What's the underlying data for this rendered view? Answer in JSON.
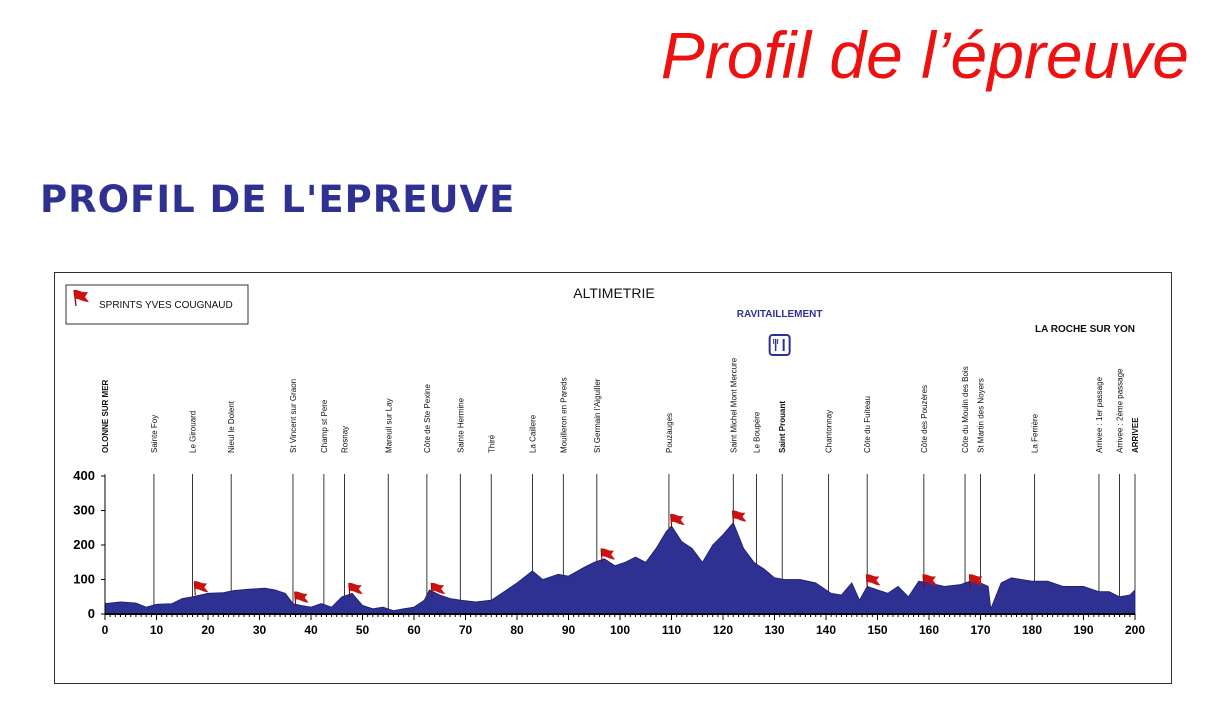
{
  "slide_title": "Profil de l’épreuve",
  "section_heading": "PROFIL DE L'EPREUVE",
  "chart_data": {
    "type": "area",
    "title": "ALTIMETRIE",
    "legend": {
      "label": "SPRINTS YVES COUGNAUD",
      "icon": "red-flag-icon",
      "placement": "top-left"
    },
    "annotations": {
      "feed_zone": {
        "label": "RAVITAILLEMENT",
        "icon": "cutlery-icon",
        "km": 131
      },
      "finish_city": "LA ROCHE SUR YON"
    },
    "xlim": [
      0,
      200
    ],
    "ylim": [
      0,
      400
    ],
    "x_ticks": [
      0,
      10,
      20,
      30,
      40,
      50,
      60,
      70,
      80,
      90,
      100,
      110,
      120,
      130,
      140,
      150,
      160,
      170,
      180,
      190,
      200
    ],
    "y_ticks": [
      0,
      100,
      200,
      300,
      400
    ],
    "grid": false,
    "colors": {
      "fill": "#2e3192",
      "flag": "#cc1111",
      "text": "#111111",
      "feed": "#2e3192"
    },
    "profile": {
      "x": [
        0,
        3,
        6,
        8,
        10,
        13,
        15,
        17,
        20,
        23,
        25,
        28,
        31,
        33,
        35,
        36.5,
        38,
        40,
        42,
        44,
        46,
        48,
        50,
        52,
        54,
        56,
        58,
        60,
        62,
        63,
        65,
        67,
        69,
        72,
        75,
        78,
        80,
        83,
        85,
        88,
        90,
        93,
        95,
        97,
        99,
        101,
        103,
        105,
        107,
        109,
        110,
        112,
        114,
        116,
        118,
        120,
        122,
        124,
        126,
        128,
        130,
        132,
        135,
        138,
        141,
        143,
        145,
        146.5,
        148,
        150,
        152,
        154,
        156,
        158,
        160,
        163,
        166,
        168,
        170,
        171.5,
        172,
        174,
        176,
        178,
        180,
        183,
        186,
        190,
        193,
        195,
        197,
        199,
        200
      ],
      "y": [
        30,
        35,
        32,
        20,
        28,
        30,
        45,
        50,
        60,
        62,
        68,
        72,
        75,
        70,
        60,
        30,
        25,
        20,
        30,
        20,
        50,
        60,
        25,
        15,
        20,
        10,
        15,
        20,
        40,
        70,
        55,
        45,
        40,
        35,
        40,
        70,
        90,
        125,
        100,
        115,
        110,
        135,
        150,
        160,
        140,
        150,
        165,
        150,
        190,
        240,
        255,
        210,
        190,
        150,
        200,
        230,
        265,
        190,
        150,
        130,
        105,
        100,
        100,
        90,
        60,
        55,
        90,
        40,
        80,
        70,
        60,
        80,
        50,
        95,
        90,
        80,
        85,
        95,
        90,
        80,
        15,
        90,
        105,
        100,
        95,
        95,
        80,
        80,
        65,
        65,
        50,
        55,
        70
      ]
    },
    "locations": [
      {
        "label": "OLONNE SUR MER",
        "km": 0,
        "bold": true
      },
      {
        "label": "Sainte Foy",
        "km": 9.5
      },
      {
        "label": "Le Girouard",
        "km": 17
      },
      {
        "label": "Nieul le Dolent",
        "km": 24.5
      },
      {
        "label": "St Vincent sur Graon",
        "km": 36.5
      },
      {
        "label": "Champ st Pere",
        "km": 42.5
      },
      {
        "label": "Rosnay",
        "km": 46.5
      },
      {
        "label": "Mareuil sur Lay",
        "km": 55
      },
      {
        "label": "Côte de Ste Pexine",
        "km": 62.5
      },
      {
        "label": "Sainte Hermine",
        "km": 69
      },
      {
        "label": "Thiré",
        "km": 75
      },
      {
        "label": "La Caillere",
        "km": 83
      },
      {
        "label": "Mouilleron en Pareds",
        "km": 89
      },
      {
        "label": "St Germain l'Aiguiller",
        "km": 95.5
      },
      {
        "label": "Pouzauges",
        "km": 109.5
      },
      {
        "label": "Saint Michel Mont Mercure",
        "km": 122
      },
      {
        "label": "Le Boupère",
        "km": 126.5
      },
      {
        "label": "Saint Prouant",
        "km": 131.5,
        "bold": true
      },
      {
        "label": "Chantonnay",
        "km": 140.5
      },
      {
        "label": "Côte du Fuiteau",
        "km": 148
      },
      {
        "label": "Côte des Pouzères",
        "km": 159
      },
      {
        "label": "Côte du Moulin des Bois",
        "km": 167
      },
      {
        "label": "St Martin des Noyers",
        "km": 170
      },
      {
        "label": "La Ferrière",
        "km": 180.5
      },
      {
        "label": "Arrivee : 1er passage",
        "km": 193
      },
      {
        "label": "Arrivee : 2ème passage",
        "km": 197
      },
      {
        "label": "ARRIVEE",
        "km": 200,
        "bold": true
      }
    ],
    "sprints": [
      {
        "km": 18.5,
        "elevation": 60
      },
      {
        "km": 38,
        "elevation": 30
      },
      {
        "km": 48.5,
        "elevation": 55
      },
      {
        "km": 64.5,
        "elevation": 55
      },
      {
        "km": 97.5,
        "elevation": 155
      },
      {
        "km": 111,
        "elevation": 255
      },
      {
        "km": 123,
        "elevation": 265
      },
      {
        "km": 149,
        "elevation": 80
      },
      {
        "km": 160,
        "elevation": 80
      },
      {
        "km": 169,
        "elevation": 80
      }
    ]
  }
}
